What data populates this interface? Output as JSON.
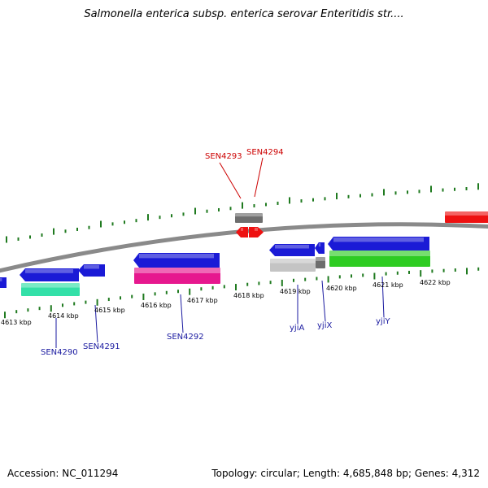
{
  "title": "Salmonella enterica subsp. enterica serovar Enteritidis str....",
  "footer": {
    "accession": "Accession: NC_011294",
    "summary": "Topology: circular; Length: 4,685,848 bp; Genes: 4,312"
  },
  "colors": {
    "backbone": "#8a8a8a",
    "tick": "#1f7a1f",
    "blue_gene": "#1a1ad6",
    "red_gene": "#ee1111",
    "gray_gene": "#6e6e6e",
    "light_gray_gene": "#c4c4c4",
    "teal_gene": "#33e0a8",
    "pink_gene": "#e6188e",
    "green_gene": "#2ecc22",
    "red_label": "#cc0000",
    "blue_label": "#1a1aa0"
  },
  "scale_labels": [
    "4613 kbp",
    "4614 kbp",
    "4615 kbp",
    "4616 kbp",
    "4617 kbp",
    "4618 kbp",
    "4619 kbp",
    "4620 kbp",
    "4621 kbp",
    "4622 kbp"
  ],
  "gene_labels": [
    "SEN4293",
    "SEN4294",
    "SEN4290",
    "SEN4291",
    "SEN4292",
    "yjiA",
    "yjiX",
    "yjiY"
  ]
}
